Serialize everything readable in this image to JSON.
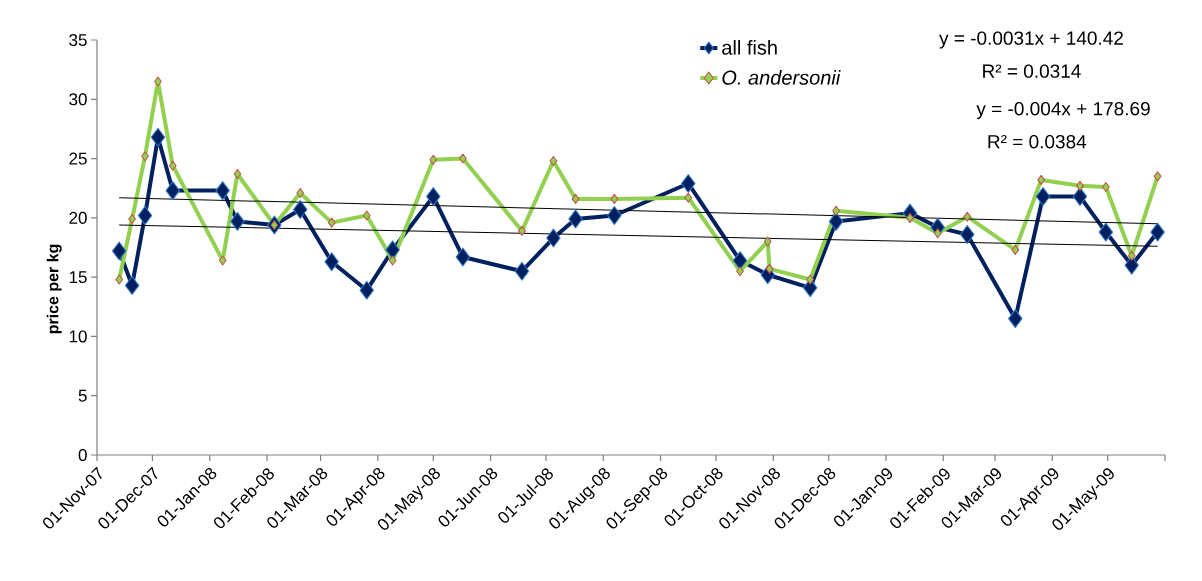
{
  "chart_data": {
    "type": "line",
    "ylabel": "price per kg",
    "xlim": [
      "2007-11-01",
      "2009-06-01"
    ],
    "ylim": [
      0,
      35
    ],
    "yticks": [
      0,
      5,
      10,
      15,
      20,
      25,
      30,
      35
    ],
    "xticks": [
      {
        "value": "2007-11-01",
        "label": "01-Nov-07"
      },
      {
        "value": "2007-12-01",
        "label": "01-Dec-07"
      },
      {
        "value": "2008-01-01",
        "label": "01-Jan-08"
      },
      {
        "value": "2008-02-01",
        "label": "01-Feb-08"
      },
      {
        "value": "2008-03-01",
        "label": "01-Mar-08"
      },
      {
        "value": "2008-04-01",
        "label": "01-Apr-08"
      },
      {
        "value": "2008-05-01",
        "label": "01-May-08"
      },
      {
        "value": "2008-06-01",
        "label": "01-Jun-08"
      },
      {
        "value": "2008-07-01",
        "label": "01-Jul-08"
      },
      {
        "value": "2008-08-01",
        "label": "01-Aug-08"
      },
      {
        "value": "2008-09-01",
        "label": "01-Sep-08"
      },
      {
        "value": "2008-10-01",
        "label": "01-Oct-08"
      },
      {
        "value": "2008-11-01",
        "label": "01-Nov-08"
      },
      {
        "value": "2008-12-01",
        "label": "01-Dec-08"
      },
      {
        "value": "2009-01-01",
        "label": "01-Jan-09"
      },
      {
        "value": "2009-02-01",
        "label": "01-Feb-09"
      },
      {
        "value": "2009-03-01",
        "label": "01-Mar-09"
      },
      {
        "value": "2009-04-01",
        "label": "01-Apr-09"
      },
      {
        "value": "2009-05-01",
        "label": "01-May-09"
      },
      {
        "value": "2009-06-01",
        "label": null
      }
    ],
    "marker": "diamond",
    "line_style": "solid",
    "legend": "top right",
    "grid": false,
    "series": [
      {
        "name": "all fish",
        "color": "#002060",
        "x": [
          "2007-11-13",
          "2007-11-20",
          "2007-11-27",
          "2007-12-04",
          "2007-12-12",
          "2008-01-08",
          "2008-01-16",
          "2008-02-05",
          "2008-02-19",
          "2008-03-07",
          "2008-03-26",
          "2008-04-09",
          "2008-05-01",
          "2008-05-17",
          "2008-06-18",
          "2008-07-05",
          "2008-07-17",
          "2008-08-07",
          "2008-09-16",
          "2008-10-14",
          "2008-10-29",
          "2008-11-21",
          "2008-12-05",
          "2009-01-14",
          "2009-01-29",
          "2009-02-14",
          "2009-03-12",
          "2009-03-27",
          "2009-04-16",
          "2009-04-30",
          "2009-05-14",
          "2009-05-28"
        ],
        "values": [
          17.2,
          14.3,
          20.2,
          26.8,
          22.3,
          22.3,
          19.7,
          19.4,
          20.7,
          16.3,
          13.9,
          17.3,
          21.8,
          16.7,
          15.5,
          18.3,
          19.9,
          20.2,
          22.9,
          16.4,
          15.2,
          14.1,
          19.7,
          20.4,
          19.2,
          18.6,
          11.5,
          21.8,
          21.8,
          18.8,
          16.0,
          18.8
        ]
      },
      {
        "name": "*O. andersonii*",
        "color": "#92d050",
        "x": [
          "2007-11-13",
          "2007-11-20",
          "2007-11-27",
          "2007-12-04",
          "2007-12-12",
          "2008-01-08",
          "2008-01-16",
          "2008-02-05",
          "2008-02-19",
          "2008-03-07",
          "2008-03-26",
          "2008-04-09",
          "2008-05-01",
          "2008-05-17",
          "2008-06-18",
          "2008-07-05",
          "2008-07-17",
          "2008-08-07",
          "2008-09-16",
          "2008-10-14",
          "2008-10-29",
          "2008-10-30",
          "2008-11-21",
          "2008-12-05",
          "2009-01-14",
          "2009-01-29",
          "2009-02-14",
          "2009-03-12",
          "2009-03-26",
          "2009-04-16",
          "2009-04-30",
          "2009-05-14",
          "2009-05-28"
        ],
        "values": [
          14.8,
          19.9,
          25.2,
          31.5,
          24.4,
          16.4,
          23.7,
          19.4,
          22.1,
          19.6,
          20.2,
          16.4,
          24.9,
          25.0,
          18.9,
          24.8,
          21.6,
          21.6,
          21.7,
          15.5,
          18.0,
          15.7,
          14.8,
          20.6,
          20.0,
          18.7,
          20.1,
          17.3,
          23.2,
          22.7,
          22.6,
          16.8,
          23.5
        ]
      },
      {
        "type": "line",
        "marker": "none",
        "color": "#000000",
        "x": [
          "2007-11-13",
          "2009-05-28"
        ],
        "values": [
          19.4,
          17.6
        ]
      },
      {
        "type": "line",
        "marker": "none",
        "color": "#000000",
        "x": [
          "2007-11-13",
          "2009-05-28"
        ],
        "values": [
          21.7,
          19.5
        ]
      }
    ],
    "annotations": [
      "y = -0.0031x + 140.42",
      "R² = 0.0314",
      "y = -0.004x + 178.69",
      "R² = 0.0384"
    ]
  }
}
